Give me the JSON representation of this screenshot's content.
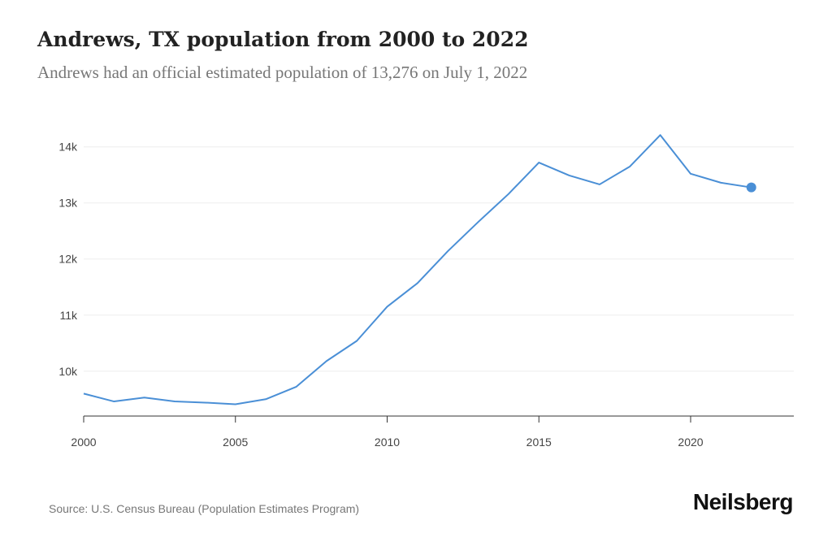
{
  "header": {
    "title": "Andrews, TX population from 2000 to 2022",
    "subtitle": "Andrews had an official estimated population of 13,276 on July 1, 2022"
  },
  "footer": {
    "source": "Source: U.S. Census Bureau (Population Estimates Program)",
    "brand": "Neilsberg"
  },
  "colors": {
    "line": "#4a8fd6",
    "grid": "#eeeeee",
    "axis": "#333333"
  },
  "chart_data": {
    "type": "line",
    "title": "Andrews, TX population from 2000 to 2022",
    "subtitle": "Andrews had an official estimated population of 13,276 on July 1, 2022",
    "xlabel": "",
    "ylabel": "",
    "x": [
      2000,
      2001,
      2002,
      2003,
      2004,
      2005,
      2006,
      2007,
      2008,
      2009,
      2010,
      2011,
      2012,
      2013,
      2014,
      2015,
      2016,
      2017,
      2018,
      2019,
      2020,
      2021,
      2022
    ],
    "series": [
      {
        "values": [
          9600,
          9460,
          9530,
          9460,
          9440,
          9410,
          9500,
          9720,
          10180,
          10540,
          11150,
          11570,
          12140,
          12660,
          13160,
          13720,
          13490,
          13330,
          13650,
          14210,
          13520,
          13360,
          13276
        ]
      }
    ],
    "xlim": [
      2000,
      2023.4
    ],
    "ylim": [
      9200,
      14300
    ],
    "x_ticks": [
      2000,
      2005,
      2010,
      2015,
      2020
    ],
    "x_tick_labels": [
      "2000",
      "2005",
      "2010",
      "2015",
      "2020"
    ],
    "y_ticks": [
      10000,
      11000,
      12000,
      13000,
      14000
    ],
    "y_tick_labels": [
      "10k",
      "11k",
      "12k",
      "13k",
      "14k"
    ],
    "grid": true,
    "legend": "none",
    "highlight_last_point": true
  }
}
